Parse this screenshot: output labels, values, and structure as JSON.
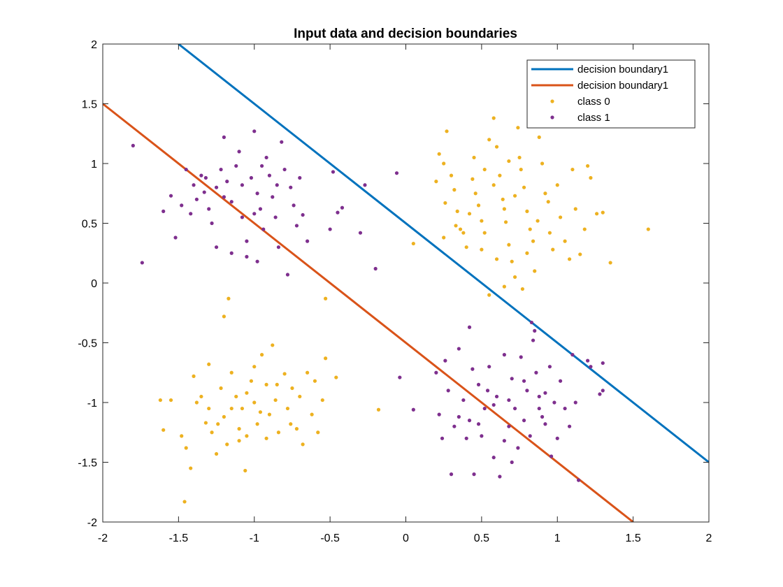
{
  "chart_data": {
    "type": "scatter",
    "title": "Input data and decision boundaries",
    "xlabel": "",
    "ylabel": "",
    "xlim": [
      -2,
      2
    ],
    "ylim": [
      -2,
      2
    ],
    "xticks": [
      "-2",
      "-1.5",
      "-1",
      "-0.5",
      "0",
      "0.5",
      "1",
      "1.5",
      "2"
    ],
    "yticks": [
      "-2",
      "-1.5",
      "-1",
      "-0.5",
      "0",
      "0.5",
      "1",
      "1.5",
      "2"
    ],
    "xtick_values": [
      -2,
      -1.5,
      -1,
      -0.5,
      0,
      0.5,
      1,
      1.5,
      2
    ],
    "ytick_values": [
      -2,
      -1.5,
      -1,
      -0.5,
      0,
      0.5,
      1,
      1.5,
      2
    ],
    "grid": false,
    "legend_position": "top-right",
    "lines": [
      {
        "name": "decision boundary1",
        "color": "#0072BD",
        "x": [
          -1.5,
          2.0
        ],
        "y": [
          2.0,
          -1.5
        ]
      },
      {
        "name": "decision boundary1",
        "color": "#D95319",
        "x": [
          -2.0,
          1.5
        ],
        "y": [
          1.5,
          -2.0
        ]
      }
    ],
    "series": [
      {
        "name": "class 0",
        "color": "#EDB120",
        "points": [
          [
            0.2,
            0.85
          ],
          [
            0.25,
            1.0
          ],
          [
            0.27,
            1.27
          ],
          [
            0.22,
            1.08
          ],
          [
            0.3,
            0.9
          ],
          [
            0.32,
            0.78
          ],
          [
            0.26,
            0.67
          ],
          [
            0.34,
            0.6
          ],
          [
            0.36,
            0.45
          ],
          [
            0.38,
            0.42
          ],
          [
            0.25,
            0.38
          ],
          [
            0.4,
            0.3
          ],
          [
            0.45,
            1.05
          ],
          [
            0.46,
            0.75
          ],
          [
            0.48,
            0.65
          ],
          [
            0.5,
            0.52
          ],
          [
            0.52,
            0.42
          ],
          [
            0.55,
            1.2
          ],
          [
            0.58,
            1.38
          ],
          [
            0.6,
            1.14
          ],
          [
            0.62,
            0.9
          ],
          [
            0.64,
            0.7
          ],
          [
            0.65,
            0.62
          ],
          [
            0.66,
            0.51
          ],
          [
            0.68,
            0.32
          ],
          [
            0.7,
            0.18
          ],
          [
            0.72,
            0.05
          ],
          [
            0.74,
            1.3
          ],
          [
            0.75,
            1.05
          ],
          [
            0.76,
            0.95
          ],
          [
            0.78,
            0.8
          ],
          [
            0.8,
            0.6
          ],
          [
            0.82,
            0.45
          ],
          [
            0.84,
            0.35
          ],
          [
            0.85,
            0.1
          ],
          [
            0.88,
            1.22
          ],
          [
            0.9,
            1.0
          ],
          [
            0.92,
            0.75
          ],
          [
            0.94,
            0.68
          ],
          [
            0.95,
            0.42
          ],
          [
            0.97,
            0.28
          ],
          [
            1.0,
            0.82
          ],
          [
            1.02,
            0.55
          ],
          [
            1.05,
            0.35
          ],
          [
            1.08,
            0.2
          ],
          [
            1.1,
            0.95
          ],
          [
            1.12,
            0.62
          ],
          [
            1.15,
            0.24
          ],
          [
            1.18,
            0.45
          ],
          [
            1.2,
            0.98
          ],
          [
            1.22,
            0.88
          ],
          [
            1.26,
            0.58
          ],
          [
            1.3,
            0.59
          ],
          [
            1.35,
            0.17
          ],
          [
            1.6,
            0.45
          ],
          [
            0.05,
            0.33
          ],
          [
            0.55,
            -0.1
          ],
          [
            0.65,
            -0.03
          ],
          [
            0.77,
            -0.05
          ],
          [
            0.58,
            0.82
          ],
          [
            0.42,
            0.58
          ],
          [
            0.52,
            0.95
          ],
          [
            0.68,
            1.02
          ],
          [
            0.72,
            0.73
          ],
          [
            0.87,
            0.52
          ],
          [
            0.6,
            0.2
          ],
          [
            0.8,
            0.25
          ],
          [
            0.5,
            0.28
          ],
          [
            0.33,
            0.48
          ],
          [
            0.44,
            0.87
          ],
          [
            -1.62,
            -0.98
          ],
          [
            -1.6,
            -1.23
          ],
          [
            -1.55,
            -0.98
          ],
          [
            -1.48,
            -1.28
          ],
          [
            -1.45,
            -1.38
          ],
          [
            -1.42,
            -1.55
          ],
          [
            -1.4,
            -0.78
          ],
          [
            -1.38,
            -1.0
          ],
          [
            -1.35,
            -0.95
          ],
          [
            -1.32,
            -1.17
          ],
          [
            -1.3,
            -0.68
          ],
          [
            -1.28,
            -1.25
          ],
          [
            -1.25,
            -1.43
          ],
          [
            -1.22,
            -0.88
          ],
          [
            -1.2,
            -1.12
          ],
          [
            -1.18,
            -1.35
          ],
          [
            -1.15,
            -0.75
          ],
          [
            -1.12,
            -0.95
          ],
          [
            -1.1,
            -1.22
          ],
          [
            -1.08,
            -1.05
          ],
          [
            -1.05,
            -1.28
          ],
          [
            -1.02,
            -0.82
          ],
          [
            -1.0,
            -1.0
          ],
          [
            -0.98,
            -1.18
          ],
          [
            -0.95,
            -0.6
          ],
          [
            -0.92,
            -0.85
          ],
          [
            -0.9,
            -1.1
          ],
          [
            -0.88,
            -0.52
          ],
          [
            -0.86,
            -0.98
          ],
          [
            -0.84,
            -1.25
          ],
          [
            -0.8,
            -0.76
          ],
          [
            -0.78,
            -1.05
          ],
          [
            -0.75,
            -0.88
          ],
          [
            -0.72,
            -1.22
          ],
          [
            -0.7,
            -0.95
          ],
          [
            -0.68,
            -1.35
          ],
          [
            -0.65,
            -0.75
          ],
          [
            -0.62,
            -1.1
          ],
          [
            -0.6,
            -0.82
          ],
          [
            -0.58,
            -1.25
          ],
          [
            -0.55,
            -0.98
          ],
          [
            -0.53,
            -0.63
          ],
          [
            -0.46,
            -0.79
          ],
          [
            -1.2,
            -0.28
          ],
          [
            -1.17,
            -0.13
          ],
          [
            -1.06,
            -1.57
          ],
          [
            -1.46,
            -1.83
          ],
          [
            -0.53,
            -0.13
          ],
          [
            -0.18,
            -1.06
          ],
          [
            -1.3,
            -1.05
          ],
          [
            -1.15,
            -1.05
          ],
          [
            -1.05,
            -0.92
          ],
          [
            -0.96,
            -1.08
          ],
          [
            -0.85,
            -0.85
          ],
          [
            -1.0,
            -0.7
          ],
          [
            -1.24,
            -1.18
          ],
          [
            -0.92,
            -1.3
          ],
          [
            -0.76,
            -1.18
          ],
          [
            -1.1,
            -1.32
          ]
        ]
      },
      {
        "name": "class 1",
        "color": "#7E2F8E",
        "points": [
          [
            -1.8,
            1.15
          ],
          [
            -1.74,
            0.17
          ],
          [
            -1.6,
            0.6
          ],
          [
            -1.55,
            0.73
          ],
          [
            -1.52,
            0.38
          ],
          [
            -1.48,
            0.65
          ],
          [
            -1.45,
            0.95
          ],
          [
            -1.42,
            0.58
          ],
          [
            -1.4,
            0.82
          ],
          [
            -1.38,
            0.7
          ],
          [
            -1.35,
            0.9
          ],
          [
            -1.33,
            0.76
          ],
          [
            -1.3,
            0.62
          ],
          [
            -1.28,
            0.5
          ],
          [
            -1.25,
            0.8
          ],
          [
            -1.22,
            0.95
          ],
          [
            -1.2,
            1.22
          ],
          [
            -1.18,
            0.85
          ],
          [
            -1.15,
            0.68
          ],
          [
            -1.12,
            0.98
          ],
          [
            -1.1,
            1.1
          ],
          [
            -1.08,
            0.55
          ],
          [
            -1.05,
            0.35
          ],
          [
            -1.02,
            0.88
          ],
          [
            -1.0,
            1.27
          ],
          [
            -0.98,
            0.75
          ],
          [
            -0.96,
            0.62
          ],
          [
            -0.94,
            0.45
          ],
          [
            -0.92,
            1.05
          ],
          [
            -0.9,
            0.9
          ],
          [
            -0.88,
            0.72
          ],
          [
            -0.86,
            0.55
          ],
          [
            -0.84,
            0.3
          ],
          [
            -0.82,
            1.18
          ],
          [
            -0.8,
            0.95
          ],
          [
            -0.78,
            0.07
          ],
          [
            -0.76,
            0.8
          ],
          [
            -0.74,
            0.65
          ],
          [
            -0.72,
            0.48
          ],
          [
            -0.7,
            0.88
          ],
          [
            -0.68,
            0.57
          ],
          [
            -0.65,
            0.35
          ],
          [
            -0.5,
            0.45
          ],
          [
            -0.48,
            0.93
          ],
          [
            -0.45,
            0.59
          ],
          [
            -0.42,
            0.63
          ],
          [
            -0.3,
            0.42
          ],
          [
            -0.27,
            0.82
          ],
          [
            -0.2,
            0.12
          ],
          [
            -0.06,
            0.92
          ],
          [
            -1.25,
            0.3
          ],
          [
            -1.15,
            0.25
          ],
          [
            -1.05,
            0.22
          ],
          [
            -0.98,
            0.18
          ],
          [
            -1.2,
            0.72
          ],
          [
            -1.32,
            0.88
          ],
          [
            -0.95,
            0.98
          ],
          [
            -1.08,
            0.82
          ],
          [
            -0.85,
            0.82
          ],
          [
            -1.0,
            0.58
          ],
          [
            -0.04,
            -0.79
          ],
          [
            0.05,
            -1.06
          ],
          [
            0.2,
            -0.75
          ],
          [
            0.22,
            -1.1
          ],
          [
            0.24,
            -1.3
          ],
          [
            0.26,
            -0.65
          ],
          [
            0.28,
            -0.9
          ],
          [
            0.3,
            -1.6
          ],
          [
            0.32,
            -1.2
          ],
          [
            0.35,
            -0.55
          ],
          [
            0.38,
            -0.98
          ],
          [
            0.4,
            -1.3
          ],
          [
            0.42,
            -1.15
          ],
          [
            0.44,
            -0.72
          ],
          [
            0.45,
            -1.6
          ],
          [
            0.48,
            -0.85
          ],
          [
            0.5,
            -1.28
          ],
          [
            0.52,
            -1.05
          ],
          [
            0.55,
            -0.7
          ],
          [
            0.58,
            -1.46
          ],
          [
            0.6,
            -0.95
          ],
          [
            0.62,
            -1.62
          ],
          [
            0.65,
            -0.6
          ],
          [
            0.68,
            -1.2
          ],
          [
            0.7,
            -0.8
          ],
          [
            0.72,
            -1.05
          ],
          [
            0.74,
            -1.38
          ],
          [
            0.76,
            -0.62
          ],
          [
            0.78,
            -1.15
          ],
          [
            0.8,
            -0.9
          ],
          [
            0.82,
            -1.28
          ],
          [
            0.84,
            -0.48
          ],
          [
            0.86,
            -0.75
          ],
          [
            0.88,
            -1.05
          ],
          [
            0.9,
            -1.12
          ],
          [
            0.92,
            -0.92
          ],
          [
            0.95,
            -0.7
          ],
          [
            0.98,
            -1.0
          ],
          [
            1.0,
            -1.3
          ],
          [
            1.02,
            -0.82
          ],
          [
            1.05,
            -1.05
          ],
          [
            1.08,
            -1.2
          ],
          [
            1.1,
            -0.6
          ],
          [
            1.12,
            -1.0
          ],
          [
            1.14,
            -1.65
          ],
          [
            1.2,
            -0.65
          ],
          [
            1.22,
            -0.7
          ],
          [
            1.28,
            -0.93
          ],
          [
            1.3,
            -0.9
          ],
          [
            1.3,
            -0.67
          ],
          [
            0.83,
            -0.33
          ],
          [
            0.85,
            -0.4
          ],
          [
            0.42,
            -0.37
          ],
          [
            0.58,
            -1.02
          ],
          [
            0.68,
            -0.98
          ],
          [
            0.48,
            -1.18
          ],
          [
            0.35,
            -1.12
          ],
          [
            0.78,
            -0.82
          ],
          [
            0.92,
            -1.18
          ],
          [
            0.65,
            -1.32
          ],
          [
            0.54,
            -0.9
          ],
          [
            0.7,
            -1.5
          ],
          [
            0.88,
            -0.95
          ],
          [
            0.96,
            -1.45
          ]
        ]
      }
    ]
  }
}
